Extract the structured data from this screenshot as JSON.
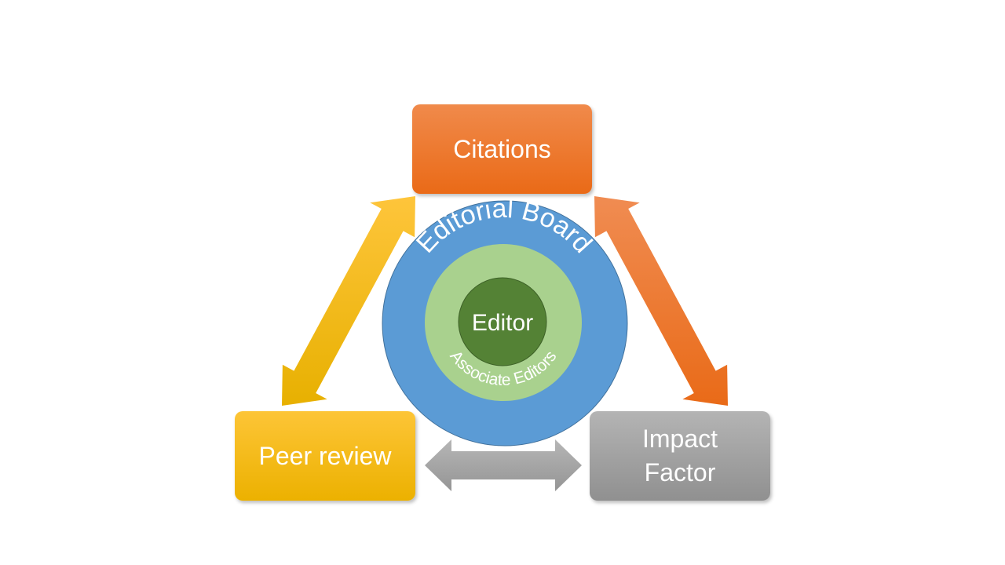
{
  "nodes": {
    "citations": "Citations",
    "peer_review": "Peer review",
    "impact_factor": "Impact\nFactor"
  },
  "rings": {
    "outer": "Editorial Board",
    "middle": "Associate Editors",
    "inner": "Editor"
  },
  "colors": {
    "citations": "#ED7D31",
    "peer_review": "#FFC000",
    "impact_factor": "#A5A5A5",
    "editorial_board": "#5B9BD5",
    "associate_editors": "#A9D18E",
    "editor": "#548235"
  }
}
